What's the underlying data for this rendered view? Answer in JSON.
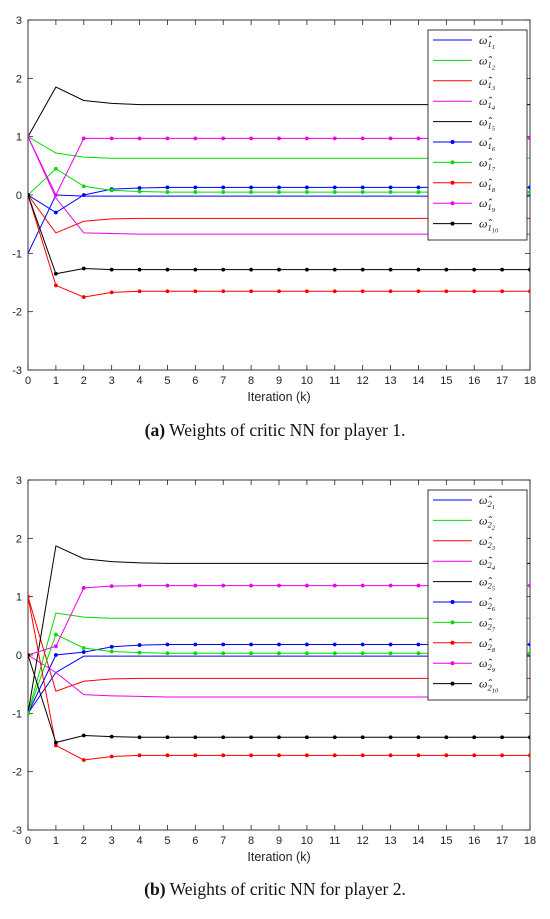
{
  "chart_data": [
    {
      "type": "line",
      "caption_label": "(a)",
      "caption_text": "Weights of critic NN for player 1.",
      "xlabel": "Iteration (k)",
      "ylabel": "",
      "xlim": [
        0,
        18
      ],
      "ylim": [
        -3,
        3
      ],
      "x": [
        0,
        1,
        2,
        3,
        4,
        5,
        6,
        7,
        8,
        9,
        10,
        11,
        12,
        13,
        14,
        15,
        16,
        17,
        18
      ],
      "legend_position": "top-right",
      "grid": false,
      "series": [
        {
          "name": "ω̂_{1_1}",
          "sym": "1",
          "sub": "1",
          "color": "#0000ff",
          "marker": false,
          "values": [
            -1,
            0.0,
            -0.02,
            -0.02,
            -0.02,
            -0.02,
            -0.02,
            -0.02,
            -0.02,
            -0.02,
            -0.02,
            -0.02,
            -0.02,
            -0.02,
            -0.02,
            -0.02,
            -0.02,
            -0.02,
            -0.02
          ]
        },
        {
          "name": "ω̂_{1_2}",
          "sym": "1",
          "sub": "2",
          "color": "#00dd00",
          "marker": false,
          "values": [
            1,
            0.72,
            0.65,
            0.63,
            0.63,
            0.63,
            0.63,
            0.63,
            0.63,
            0.63,
            0.63,
            0.63,
            0.63,
            0.63,
            0.63,
            0.63,
            0.63,
            0.63,
            0.63
          ]
        },
        {
          "name": "ω̂_{1_3}",
          "sym": "1",
          "sub": "3",
          "color": "#ff0000",
          "marker": false,
          "values": [
            0,
            -0.65,
            -0.45,
            -0.41,
            -0.4,
            -0.4,
            -0.4,
            -0.4,
            -0.4,
            -0.4,
            -0.4,
            -0.4,
            -0.4,
            -0.4,
            -0.4,
            -0.4,
            -0.4,
            -0.4,
            -0.4
          ]
        },
        {
          "name": "ω̂_{1_4}",
          "sym": "1",
          "sub": "4",
          "color": "#ee00ee",
          "marker": false,
          "values": [
            1,
            -0.05,
            -0.65,
            -0.66,
            -0.67,
            -0.67,
            -0.67,
            -0.67,
            -0.67,
            -0.67,
            -0.67,
            -0.67,
            -0.67,
            -0.67,
            -0.67,
            -0.67,
            -0.67,
            -0.67,
            -0.67
          ]
        },
        {
          "name": "ω̂_{1_5}",
          "sym": "1",
          "sub": "5",
          "color": "#000000",
          "marker": false,
          "values": [
            1,
            1.85,
            1.62,
            1.57,
            1.55,
            1.55,
            1.55,
            1.55,
            1.55,
            1.55,
            1.55,
            1.55,
            1.55,
            1.55,
            1.55,
            1.55,
            1.55,
            1.55,
            1.55
          ]
        },
        {
          "name": "ω̂_{1_6}",
          "sym": "1",
          "sub": "6",
          "color": "#0000ff",
          "marker": true,
          "values": [
            0,
            -0.3,
            0.0,
            0.1,
            0.12,
            0.13,
            0.13,
            0.13,
            0.13,
            0.13,
            0.13,
            0.13,
            0.13,
            0.13,
            0.13,
            0.13,
            0.13,
            0.13,
            0.13
          ]
        },
        {
          "name": "ω̂_{1_7}",
          "sym": "1",
          "sub": "7",
          "color": "#00dd00",
          "marker": true,
          "values": [
            0,
            0.45,
            0.15,
            0.08,
            0.06,
            0.05,
            0.05,
            0.05,
            0.05,
            0.05,
            0.05,
            0.05,
            0.05,
            0.05,
            0.05,
            0.05,
            0.05,
            0.05,
            0.05
          ]
        },
        {
          "name": "ω̂_{1_8}",
          "sym": "1",
          "sub": "8",
          "color": "#ff0000",
          "marker": true,
          "values": [
            0,
            -1.55,
            -1.75,
            -1.67,
            -1.65,
            -1.65,
            -1.65,
            -1.65,
            -1.65,
            -1.65,
            -1.65,
            -1.65,
            -1.65,
            -1.65,
            -1.65,
            -1.65,
            -1.65,
            -1.65,
            -1.65
          ]
        },
        {
          "name": "ω̂_{1_9}",
          "sym": "1",
          "sub": "9",
          "color": "#ee00ee",
          "marker": true,
          "values": [
            1,
            0.0,
            0.97,
            0.97,
            0.97,
            0.97,
            0.97,
            0.97,
            0.97,
            0.97,
            0.97,
            0.97,
            0.97,
            0.97,
            0.97,
            0.97,
            0.97,
            0.97,
            0.97
          ]
        },
        {
          "name": "ω̂_{1_10}",
          "sym": "1",
          "sub": "10",
          "color": "#000000",
          "marker": true,
          "values": [
            0,
            -1.35,
            -1.26,
            -1.28,
            -1.28,
            -1.28,
            -1.28,
            -1.28,
            -1.28,
            -1.28,
            -1.28,
            -1.28,
            -1.28,
            -1.28,
            -1.28,
            -1.28,
            -1.28,
            -1.28,
            -1.28
          ]
        }
      ]
    },
    {
      "type": "line",
      "caption_label": "(b)",
      "caption_text": "Weights of critic NN for player 2.",
      "xlabel": "Iteration (k)",
      "ylabel": "",
      "xlim": [
        0,
        18
      ],
      "ylim": [
        -3,
        3
      ],
      "x": [
        0,
        1,
        2,
        3,
        4,
        5,
        6,
        7,
        8,
        9,
        10,
        11,
        12,
        13,
        14,
        15,
        16,
        17,
        18
      ],
      "legend_position": "top-right",
      "grid": false,
      "series": [
        {
          "name": "ω̂_{2_1}",
          "sym": "2",
          "sub": "1",
          "color": "#0000ff",
          "marker": false,
          "values": [
            -1,
            -0.3,
            -0.02,
            -0.02,
            -0.02,
            -0.02,
            -0.02,
            -0.02,
            -0.02,
            -0.02,
            -0.02,
            -0.02,
            -0.02,
            -0.02,
            -0.02,
            -0.02,
            -0.02,
            -0.02,
            -0.02
          ]
        },
        {
          "name": "ω̂_{2_2}",
          "sym": "2",
          "sub": "2",
          "color": "#00dd00",
          "marker": false,
          "values": [
            -1,
            0.72,
            0.65,
            0.63,
            0.63,
            0.63,
            0.63,
            0.63,
            0.63,
            0.63,
            0.63,
            0.63,
            0.63,
            0.63,
            0.63,
            0.63,
            0.63,
            0.63,
            0.63
          ]
        },
        {
          "name": "ω̂_{2_3}",
          "sym": "2",
          "sub": "3",
          "color": "#ff0000",
          "marker": false,
          "values": [
            1,
            -0.62,
            -0.45,
            -0.41,
            -0.4,
            -0.4,
            -0.4,
            -0.4,
            -0.4,
            -0.4,
            -0.4,
            -0.4,
            -0.4,
            -0.4,
            -0.4,
            -0.4,
            -0.4,
            -0.4,
            -0.4
          ]
        },
        {
          "name": "ω̂_{2_4}",
          "sym": "2",
          "sub": "4",
          "color": "#ee00ee",
          "marker": false,
          "values": [
            0,
            -0.3,
            -0.68,
            -0.7,
            -0.71,
            -0.72,
            -0.72,
            -0.72,
            -0.72,
            -0.72,
            -0.72,
            -0.72,
            -0.72,
            -0.72,
            -0.72,
            -0.72,
            -0.72,
            -0.72,
            -0.72
          ]
        },
        {
          "name": "ω̂_{2_5}",
          "sym": "2",
          "sub": "5",
          "color": "#000000",
          "marker": false,
          "values": [
            -1,
            1.87,
            1.65,
            1.6,
            1.58,
            1.57,
            1.57,
            1.57,
            1.57,
            1.57,
            1.57,
            1.57,
            1.57,
            1.57,
            1.57,
            1.57,
            1.57,
            1.57,
            1.57
          ]
        },
        {
          "name": "ω̂_{2_6}",
          "sym": "2",
          "sub": "6",
          "color": "#0000ff",
          "marker": true,
          "values": [
            -1,
            0.0,
            0.05,
            0.14,
            0.17,
            0.18,
            0.18,
            0.18,
            0.18,
            0.18,
            0.18,
            0.18,
            0.18,
            0.18,
            0.18,
            0.18,
            0.18,
            0.18,
            0.18
          ]
        },
        {
          "name": "ω̂_{2_7}",
          "sym": "2",
          "sub": "7",
          "color": "#00dd00",
          "marker": true,
          "values": [
            -1,
            0.35,
            0.12,
            0.06,
            0.04,
            0.03,
            0.03,
            0.03,
            0.03,
            0.03,
            0.03,
            0.03,
            0.03,
            0.03,
            0.03,
            0.03,
            0.03,
            0.03,
            0.03
          ]
        },
        {
          "name": "ω̂_{2_8}",
          "sym": "2",
          "sub": "8",
          "color": "#ff0000",
          "marker": true,
          "values": [
            1,
            -1.55,
            -1.8,
            -1.74,
            -1.72,
            -1.72,
            -1.72,
            -1.72,
            -1.72,
            -1.72,
            -1.72,
            -1.72,
            -1.72,
            -1.72,
            -1.72,
            -1.72,
            -1.72,
            -1.72,
            -1.72
          ]
        },
        {
          "name": "ω̂_{2_9}",
          "sym": "2",
          "sub": "9",
          "color": "#ee00ee",
          "marker": true,
          "values": [
            0,
            0.15,
            1.15,
            1.18,
            1.19,
            1.19,
            1.19,
            1.19,
            1.19,
            1.19,
            1.19,
            1.19,
            1.19,
            1.19,
            1.19,
            1.19,
            1.19,
            1.19,
            1.19
          ]
        },
        {
          "name": "ω̂_{2_10}",
          "sym": "2",
          "sub": "10",
          "color": "#000000",
          "marker": true,
          "values": [
            0,
            -1.5,
            -1.38,
            -1.4,
            -1.41,
            -1.41,
            -1.41,
            -1.41,
            -1.41,
            -1.41,
            -1.41,
            -1.41,
            -1.41,
            -1.41,
            -1.41,
            -1.41,
            -1.41,
            -1.41,
            -1.41
          ]
        }
      ]
    }
  ]
}
